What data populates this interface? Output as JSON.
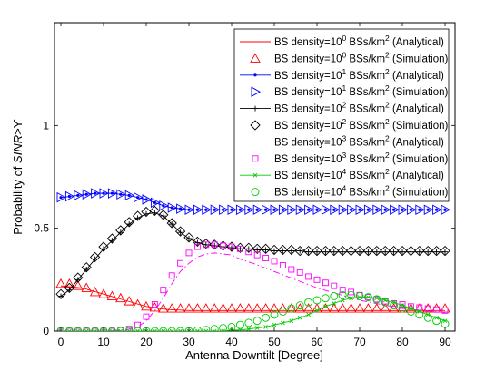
{
  "chart_data": {
    "type": "line",
    "xlabel": "Antenna Downtilt [Degree]",
    "ylabel": "Probability of SINR>ϒ",
    "ylabel_parts": {
      "prefix": "Probability of ",
      "var": "SINR",
      "rel": ">",
      "sym": "ϒ"
    },
    "xlim": [
      0,
      90
    ],
    "ylim": [
      0,
      1.5
    ],
    "x_ticks": [
      0,
      10,
      20,
      30,
      40,
      50,
      60,
      70,
      80,
      90
    ],
    "y_ticks": [
      0,
      0.5,
      1
    ],
    "y_tick_labels": [
      "0",
      "0.5",
      "1"
    ],
    "grid": false,
    "legend_position": "top-right",
    "series": [
      {
        "name": "BS density=10^0 BSs/km^2 (Analytical)",
        "legend": {
          "pre": "BS density=10",
          "sup": "0",
          "mid": " BSs/km",
          "sup2": "2",
          "post": " (Analytical)"
        },
        "color": "#ff0000",
        "line": "solid",
        "marker": "none",
        "x": [
          0,
          5,
          10,
          15,
          20,
          23,
          25,
          30,
          40,
          50,
          60,
          70,
          80,
          90
        ],
        "y": [
          0.22,
          0.21,
          0.18,
          0.15,
          0.12,
          0.11,
          0.105,
          0.1,
          0.1,
          0.1,
          0.1,
          0.1,
          0.1,
          0.1
        ]
      },
      {
        "name": "BS density=10^0 BSs/km^2 (Simulation)",
        "legend": {
          "pre": "BS density=10",
          "sup": "0",
          "mid": " BSs/km",
          "sup2": "2",
          "post": " (Simulation)"
        },
        "color": "#ff0000",
        "line": "none",
        "marker": "triangle-up",
        "x": [
          0,
          2,
          4,
          6,
          8,
          10,
          12,
          14,
          16,
          18,
          20,
          22,
          24,
          26,
          28,
          30,
          32,
          34,
          36,
          38,
          40,
          42,
          44,
          46,
          48,
          50,
          52,
          54,
          56,
          58,
          60,
          62,
          64,
          66,
          68,
          70,
          72,
          74,
          76,
          78,
          80,
          82,
          84,
          86,
          88,
          90
        ],
        "y": [
          0.23,
          0.23,
          0.22,
          0.21,
          0.19,
          0.18,
          0.17,
          0.16,
          0.145,
          0.13,
          0.12,
          0.115,
          0.11,
          0.11,
          0.11,
          0.11,
          0.11,
          0.11,
          0.11,
          0.11,
          0.11,
          0.11,
          0.11,
          0.11,
          0.11,
          0.11,
          0.11,
          0.11,
          0.11,
          0.11,
          0.11,
          0.11,
          0.11,
          0.11,
          0.11,
          0.11,
          0.11,
          0.11,
          0.11,
          0.11,
          0.11,
          0.11,
          0.11,
          0.11,
          0.11,
          0.11
        ]
      },
      {
        "name": "BS density=10^1 BSs/km^2 (Analytical)",
        "legend": {
          "pre": "BS density=10",
          "sup": "1",
          "mid": " BSs/km",
          "sup2": "2",
          "post": " (Analytical)"
        },
        "color": "#0000ff",
        "line": "solid",
        "marker": "dot",
        "x": [
          0,
          2,
          4,
          6,
          8,
          10,
          12,
          14,
          16,
          18,
          20,
          22,
          24,
          26,
          28,
          30,
          32,
          34,
          36,
          38,
          40,
          42,
          44,
          46,
          48,
          50,
          52,
          54,
          56,
          58,
          60,
          62,
          64,
          66,
          68,
          70,
          72,
          74,
          76,
          78,
          80,
          82,
          84,
          86,
          88,
          90
        ],
        "y": [
          0.65,
          0.655,
          0.66,
          0.665,
          0.67,
          0.67,
          0.67,
          0.665,
          0.66,
          0.65,
          0.64,
          0.625,
          0.61,
          0.6,
          0.595,
          0.59,
          0.59,
          0.59,
          0.59,
          0.59,
          0.59,
          0.59,
          0.59,
          0.59,
          0.59,
          0.59,
          0.59,
          0.59,
          0.59,
          0.59,
          0.59,
          0.59,
          0.59,
          0.59,
          0.59,
          0.59,
          0.59,
          0.59,
          0.59,
          0.59,
          0.59,
          0.59,
          0.59,
          0.59,
          0.59,
          0.59
        ]
      },
      {
        "name": "BS density=10^1 BSs/km^2 (Simulation)",
        "legend": {
          "pre": "BS density=10",
          "sup": "1",
          "mid": " BSs/km",
          "sup2": "2",
          "post": " (Simulation)"
        },
        "color": "#0000ff",
        "line": "none",
        "marker": "triangle-right",
        "x": [
          0,
          2,
          4,
          6,
          8,
          10,
          12,
          14,
          16,
          18,
          20,
          22,
          24,
          26,
          28,
          30,
          32,
          34,
          36,
          38,
          40,
          42,
          44,
          46,
          48,
          50,
          52,
          54,
          56,
          58,
          60,
          62,
          64,
          66,
          68,
          70,
          72,
          74,
          76,
          78,
          80,
          82,
          84,
          86,
          88,
          90
        ],
        "y": [
          0.65,
          0.655,
          0.66,
          0.665,
          0.67,
          0.67,
          0.67,
          0.665,
          0.66,
          0.65,
          0.64,
          0.625,
          0.61,
          0.6,
          0.595,
          0.59,
          0.59,
          0.59,
          0.59,
          0.59,
          0.59,
          0.59,
          0.59,
          0.59,
          0.59,
          0.59,
          0.59,
          0.59,
          0.59,
          0.59,
          0.59,
          0.59,
          0.59,
          0.59,
          0.59,
          0.59,
          0.59,
          0.59,
          0.59,
          0.59,
          0.59,
          0.59,
          0.59,
          0.59,
          0.59,
          0.59
        ]
      },
      {
        "name": "BS density=10^2 BSs/km^2 (Analytical)",
        "legend": {
          "pre": "BS density=10",
          "sup": "2",
          "mid": " BSs/km",
          "sup2": "2",
          "post": " (Analytical)"
        },
        "color": "#000000",
        "line": "solid",
        "marker": "plus",
        "x": [
          0,
          2,
          4,
          6,
          8,
          10,
          12,
          14,
          16,
          18,
          20,
          22,
          24,
          26,
          28,
          30,
          32,
          34,
          36,
          38,
          40,
          42,
          44,
          46,
          48,
          50,
          52,
          54,
          56,
          58,
          60,
          62,
          64,
          66,
          68,
          70,
          72,
          74,
          76,
          78,
          80,
          82,
          84,
          86,
          88,
          90
        ],
        "y": [
          0.17,
          0.2,
          0.25,
          0.3,
          0.35,
          0.4,
          0.44,
          0.48,
          0.52,
          0.55,
          0.57,
          0.575,
          0.56,
          0.52,
          0.48,
          0.45,
          0.43,
          0.42,
          0.415,
          0.41,
          0.405,
          0.4,
          0.4,
          0.395,
          0.395,
          0.39,
          0.39,
          0.39,
          0.39,
          0.385,
          0.385,
          0.385,
          0.385,
          0.385,
          0.385,
          0.385,
          0.385,
          0.385,
          0.385,
          0.385,
          0.385,
          0.385,
          0.385,
          0.385,
          0.385,
          0.385
        ]
      },
      {
        "name": "BS density=10^2 BSs/km^2 (Simulation)",
        "legend": {
          "pre": "BS density=10",
          "sup": "2",
          "mid": " BSs/km",
          "sup2": "2",
          "post": " (Simulation)"
        },
        "color": "#000000",
        "line": "none",
        "marker": "diamond",
        "x": [
          0,
          2,
          4,
          6,
          8,
          10,
          12,
          14,
          16,
          18,
          20,
          22,
          24,
          26,
          28,
          30,
          32,
          34,
          36,
          38,
          40,
          42,
          44,
          46,
          48,
          50,
          52,
          54,
          56,
          58,
          60,
          62,
          64,
          66,
          68,
          70,
          72,
          74,
          76,
          78,
          80,
          82,
          84,
          86,
          88,
          90
        ],
        "y": [
          0.18,
          0.21,
          0.26,
          0.31,
          0.36,
          0.41,
          0.45,
          0.49,
          0.53,
          0.56,
          0.58,
          0.585,
          0.565,
          0.525,
          0.485,
          0.455,
          0.435,
          0.425,
          0.42,
          0.415,
          0.41,
          0.405,
          0.405,
          0.4,
          0.4,
          0.395,
          0.395,
          0.395,
          0.39,
          0.39,
          0.39,
          0.39,
          0.39,
          0.39,
          0.39,
          0.39,
          0.39,
          0.39,
          0.39,
          0.39,
          0.39,
          0.39,
          0.39,
          0.39,
          0.39,
          0.39
        ]
      },
      {
        "name": "BS density=10^3 BSs/km^2 (Analytical)",
        "legend": {
          "pre": "BS density=10",
          "sup": "3",
          "mid": " BSs/km",
          "sup2": "2",
          "post": " (Analytical)"
        },
        "color": "#ff00ff",
        "line": "dashdot",
        "marker": "none",
        "x": [
          0,
          10,
          15,
          18,
          20,
          22,
          24,
          26,
          28,
          30,
          32,
          34,
          36,
          38,
          40,
          42,
          45,
          50,
          55,
          60,
          65,
          70,
          75,
          80,
          85,
          90
        ],
        "y": [
          0,
          0,
          0.005,
          0.02,
          0.05,
          0.1,
          0.16,
          0.23,
          0.29,
          0.33,
          0.36,
          0.375,
          0.38,
          0.375,
          0.37,
          0.35,
          0.33,
          0.29,
          0.25,
          0.21,
          0.18,
          0.15,
          0.13,
          0.11,
          0.1,
          0.09
        ]
      },
      {
        "name": "BS density=10^3 BSs/km^2 (Simulation)",
        "legend": {
          "pre": "BS density=10",
          "sup": "3",
          "mid": " BSs/km",
          "sup2": "2",
          "post": " (Simulation)"
        },
        "color": "#ff00ff",
        "line": "none",
        "marker": "square",
        "x": [
          0,
          2,
          4,
          6,
          8,
          10,
          12,
          14,
          16,
          18,
          20,
          22,
          24,
          26,
          28,
          30,
          32,
          34,
          36,
          38,
          40,
          42,
          44,
          46,
          48,
          50,
          52,
          54,
          56,
          58,
          60,
          62,
          64,
          66,
          68,
          70,
          72,
          74,
          76,
          78,
          80,
          82,
          84,
          86,
          88,
          90
        ],
        "y": [
          0,
          0,
          0,
          0,
          0,
          0,
          0,
          0.005,
          0.01,
          0.03,
          0.07,
          0.13,
          0.2,
          0.27,
          0.33,
          0.38,
          0.41,
          0.42,
          0.42,
          0.415,
          0.41,
          0.4,
          0.385,
          0.37,
          0.355,
          0.34,
          0.32,
          0.3,
          0.285,
          0.265,
          0.25,
          0.235,
          0.22,
          0.2,
          0.19,
          0.175,
          0.165,
          0.155,
          0.145,
          0.135,
          0.13,
          0.12,
          0.115,
          0.11,
          0.105,
          0.1
        ]
      },
      {
        "name": "BS density=10^4 BSs/km^2 (Analytical)",
        "legend": {
          "pre": "BS density=10",
          "sup": "4",
          "mid": " BSs/km",
          "sup2": "2",
          "post": " (Analytical)"
        },
        "color": "#00cc00",
        "line": "solid",
        "marker": "x",
        "x": [
          0,
          2,
          4,
          6,
          8,
          10,
          12,
          14,
          16,
          18,
          20,
          22,
          24,
          26,
          28,
          30,
          32,
          34,
          36,
          38,
          40,
          42,
          44,
          46,
          48,
          50,
          52,
          54,
          56,
          58,
          60,
          62,
          64,
          66,
          68,
          70,
          72,
          74,
          76,
          78,
          80,
          82,
          84,
          86,
          88,
          90
        ],
        "y": [
          0,
          0,
          0,
          0,
          0,
          0,
          0,
          0,
          0,
          0,
          0,
          0,
          0,
          0,
          0,
          0,
          0,
          0,
          0,
          0,
          0.005,
          0.005,
          0.01,
          0.015,
          0.02,
          0.03,
          0.04,
          0.05,
          0.065,
          0.08,
          0.1,
          0.12,
          0.135,
          0.15,
          0.16,
          0.165,
          0.165,
          0.16,
          0.15,
          0.14,
          0.125,
          0.11,
          0.095,
          0.08,
          0.065,
          0.05
        ]
      },
      {
        "name": "BS density=10^4 BSs/km^2 (Simulation)",
        "legend": {
          "pre": "BS density=10",
          "sup": "4",
          "mid": " BSs/km",
          "sup2": "2",
          "post": " (Simulation)"
        },
        "color": "#00cc00",
        "line": "none",
        "marker": "circle",
        "x": [
          0,
          2,
          4,
          6,
          8,
          10,
          12,
          14,
          16,
          18,
          20,
          22,
          24,
          26,
          28,
          30,
          32,
          34,
          36,
          38,
          40,
          42,
          44,
          46,
          48,
          50,
          52,
          54,
          56,
          58,
          60,
          62,
          64,
          66,
          68,
          70,
          72,
          74,
          76,
          78,
          80,
          82,
          84,
          86,
          88,
          90
        ],
        "y": [
          0,
          0,
          0,
          0,
          0,
          0,
          0,
          0,
          0,
          0,
          0,
          0,
          0,
          0,
          0,
          0,
          0.003,
          0.006,
          0.01,
          0.015,
          0.02,
          0.03,
          0.04,
          0.05,
          0.065,
          0.08,
          0.095,
          0.11,
          0.125,
          0.14,
          0.15,
          0.16,
          0.17,
          0.175,
          0.175,
          0.17,
          0.165,
          0.155,
          0.14,
          0.125,
          0.11,
          0.095,
          0.08,
          0.065,
          0.05,
          0.035
        ]
      }
    ]
  }
}
